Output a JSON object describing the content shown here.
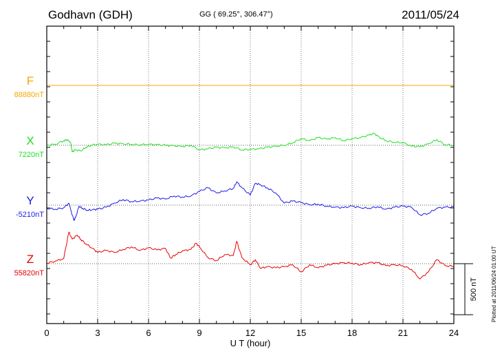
{
  "header": {
    "station": "Godhavn (GDH)",
    "coords": "GG ( 69.25°, 306.47°)",
    "date": "2011/05/24",
    "plotted": "Plotted at 2011/06/24 01:00 UT"
  },
  "chart_data": {
    "type": "line",
    "xlabel": "U T (hour)",
    "ylabel": "",
    "xlim": [
      0,
      24
    ],
    "x_ticks": [
      "0",
      "3",
      "6",
      "9",
      "12",
      "15",
      "18",
      "21",
      "24"
    ],
    "grid": true,
    "scale_bar_label": "500 nT",
    "scale_bar_nT": 500,
    "panel_spacing_nT": 587,
    "series": [
      {
        "name": "F",
        "baseline_label": "88880nT",
        "color": "#f2a900",
        "x": [
          0,
          24
        ],
        "y": [
          0,
          0
        ]
      },
      {
        "name": "X",
        "baseline_label": "7220nT",
        "color": "#22dd22",
        "x": [
          0,
          0.5,
          1,
          1.2,
          1.4,
          1.5,
          1.7,
          2,
          2.3,
          2.6,
          3,
          3.5,
          4,
          4.5,
          5,
          5.5,
          6,
          6.5,
          7,
          7.5,
          8,
          8.5,
          9,
          9.5,
          10,
          10.5,
          11,
          11.5,
          12,
          12.5,
          13,
          13.5,
          14,
          14.5,
          15,
          15.5,
          16,
          16.5,
          17,
          17.5,
          18,
          18.5,
          19,
          19.3,
          19.6,
          20,
          20.5,
          21,
          21.5,
          22,
          22.5,
          23,
          23.5,
          24
        ],
        "y": [
          0,
          10,
          45,
          55,
          30,
          -65,
          -45,
          -55,
          -20,
          0,
          10,
          5,
          20,
          15,
          10,
          5,
          10,
          5,
          0,
          -5,
          -10,
          0,
          -45,
          -35,
          -20,
          -25,
          -15,
          -45,
          -40,
          -35,
          -20,
          -10,
          0,
          25,
          65,
          45,
          75,
          60,
          75,
          45,
          65,
          75,
          100,
          115,
          80,
          45,
          30,
          25,
          -10,
          -15,
          15,
          55,
          5,
          0
        ]
      },
      {
        "name": "Y",
        "baseline_label": "-5210nT",
        "color": "#1a1ae6",
        "x": [
          0,
          0.5,
          1,
          1.3,
          1.6,
          1.7,
          1.9,
          2.1,
          2.4,
          2.7,
          3,
          3.5,
          4,
          4.5,
          5,
          5.5,
          6,
          6.5,
          7,
          7.5,
          8,
          8.5,
          9,
          9.5,
          10,
          10.5,
          11,
          11.2,
          11.5,
          12,
          12.3,
          12.6,
          13,
          13.5,
          14,
          14.5,
          15,
          15.5,
          16,
          16.5,
          17,
          17.5,
          18,
          18.5,
          19,
          19.5,
          20,
          20.5,
          21,
          21.5,
          22,
          22.5,
          23,
          23.5,
          24
        ],
        "y": [
          -30,
          -40,
          -25,
          20,
          -150,
          -120,
          -10,
          -30,
          -50,
          -45,
          -40,
          -20,
          20,
          55,
          35,
          40,
          50,
          70,
          60,
          90,
          80,
          90,
          135,
          170,
          120,
          140,
          165,
          230,
          170,
          100,
          215,
          200,
          170,
          120,
          20,
          40,
          25,
          5,
          10,
          -10,
          -20,
          -25,
          -10,
          -25,
          -30,
          -15,
          -40,
          -20,
          -10,
          -20,
          -95,
          -80,
          -30,
          -20,
          -20
        ]
      },
      {
        "name": "Z",
        "baseline_label": "55820nT",
        "color": "#e60000",
        "x": [
          0,
          0.5,
          1,
          1.3,
          1.5,
          1.8,
          2,
          2.3,
          2.7,
          3,
          3.5,
          4,
          4.5,
          5,
          5.5,
          6,
          6.5,
          7,
          7.3,
          7.6,
          8,
          8.5,
          8.8,
          9,
          9.5,
          10,
          10.5,
          11,
          11.2,
          11.5,
          12,
          12.3,
          12.6,
          13,
          13.5,
          14,
          14.5,
          15,
          15.5,
          16,
          16.5,
          17,
          17.5,
          18,
          18.5,
          19,
          19.5,
          20,
          20.5,
          21,
          21.5,
          22,
          22.5,
          23,
          23.5,
          24
        ],
        "y": [
          5,
          25,
          50,
          310,
          240,
          280,
          240,
          195,
          150,
          110,
          130,
          110,
          140,
          165,
          130,
          155,
          135,
          150,
          55,
          90,
          125,
          140,
          200,
          165,
          60,
          30,
          90,
          80,
          220,
          60,
          -10,
          40,
          -45,
          -30,
          -40,
          -30,
          -10,
          -80,
          -10,
          -40,
          -15,
          0,
          10,
          5,
          -10,
          10,
          10,
          -20,
          -10,
          -20,
          -55,
          -150,
          -80,
          40,
          -20,
          -25
        ]
      }
    ]
  }
}
